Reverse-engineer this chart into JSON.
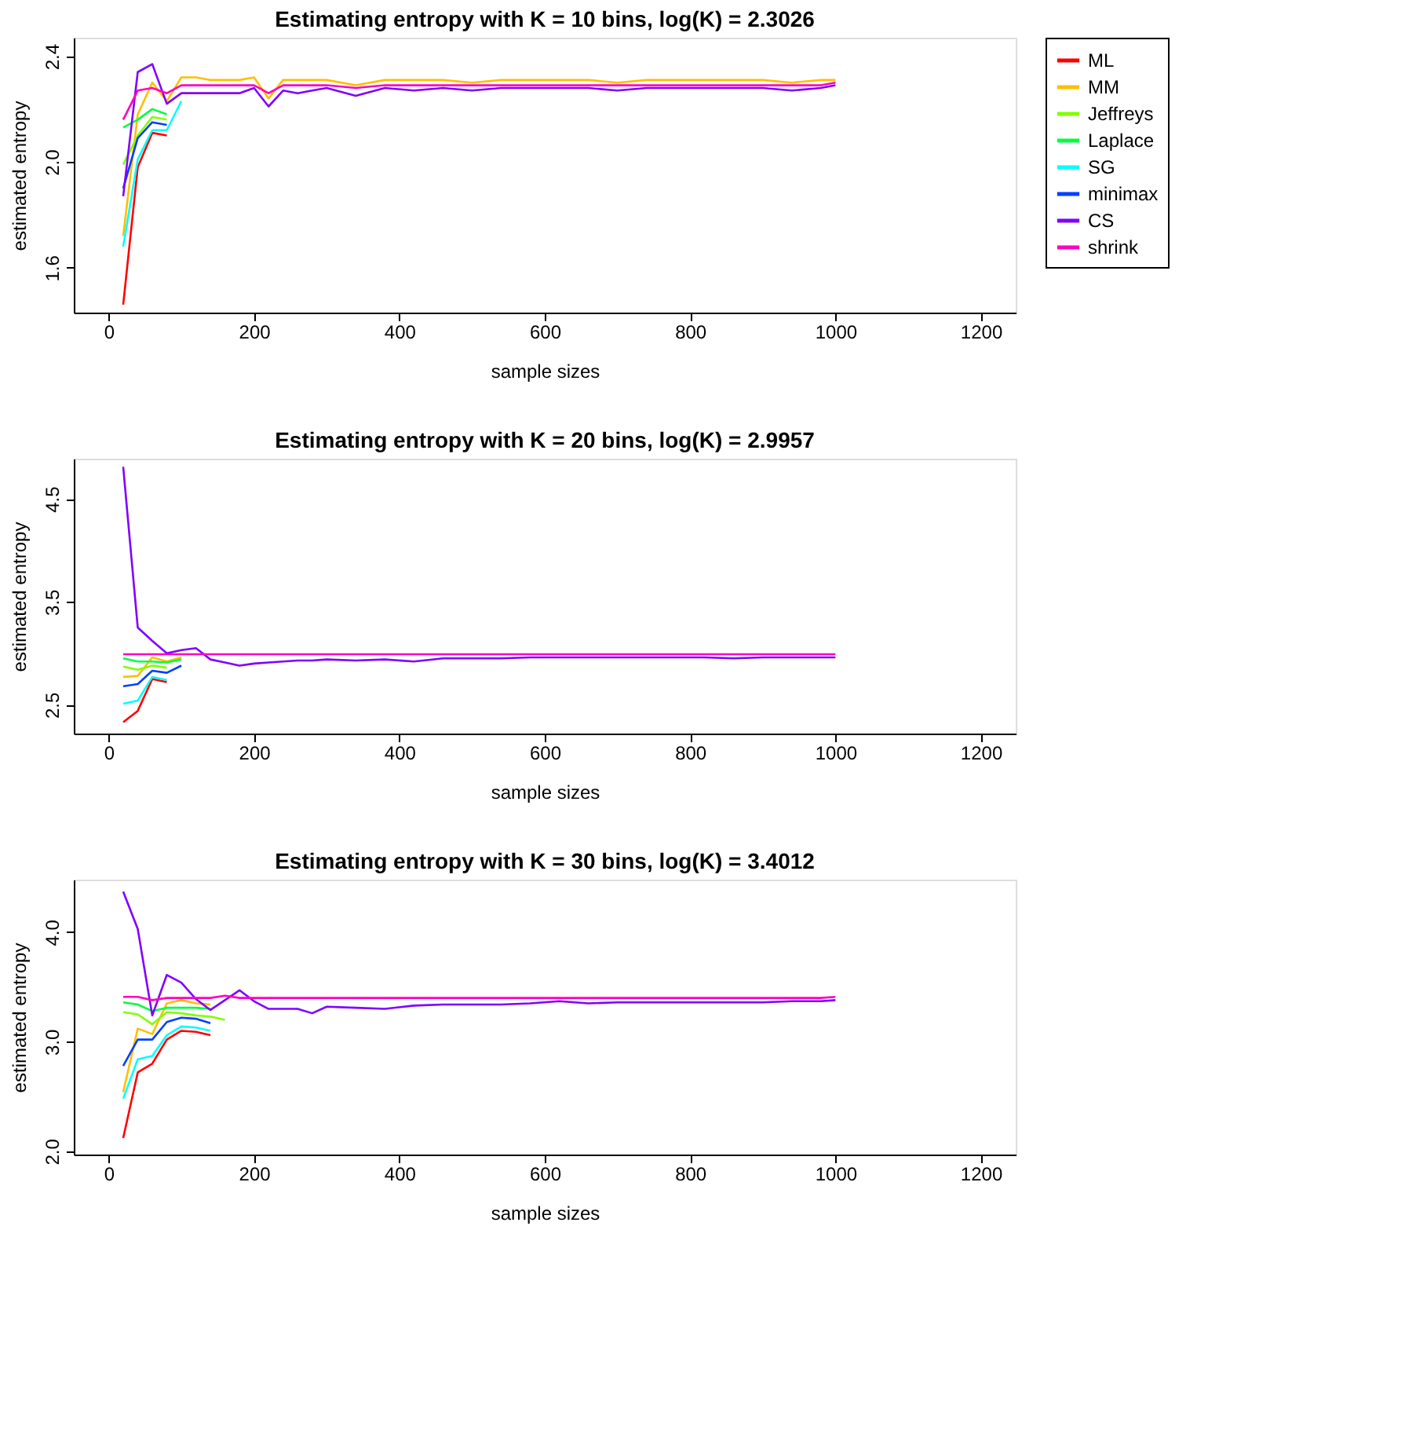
{
  "chart_data": [
    {
      "type": "line",
      "title": "Estimating entropy with K = 10 bins, log(K) = 2.3026",
      "xlabel": "sample sizes",
      "ylabel": "estimated entropy",
      "x": [
        20,
        40,
        60,
        80,
        100,
        120,
        140,
        160,
        180,
        200,
        220,
        240,
        260,
        280,
        300,
        340,
        380,
        420,
        460,
        500,
        540,
        580,
        620,
        660,
        700,
        740,
        780,
        820,
        860,
        900,
        940,
        980,
        1000
      ],
      "xlim": [
        -48,
        1248
      ],
      "xticks": [
        0,
        200,
        400,
        600,
        800,
        1000,
        1200
      ],
      "ylim": [
        1.43,
        2.47
      ],
      "yticks": [
        1.6,
        {
          "value": 2.0,
          "label": "2.0"
        },
        2.4
      ],
      "grid": false,
      "legend": "right",
      "line_style": "solid",
      "marker": "none",
      "series": [
        {
          "name": "ML",
          "color": "#ff0000",
          "values": [
            1.46,
            1.98,
            2.11,
            2.1,
            null,
            null,
            null,
            null,
            null,
            null,
            null,
            null,
            null,
            null,
            null,
            null,
            null,
            null,
            null,
            null,
            null,
            null,
            null,
            null,
            null,
            null,
            null,
            null,
            null,
            null,
            null,
            null,
            null
          ]
        },
        {
          "name": "MM",
          "color": "#ffbf00",
          "values": [
            1.72,
            2.18,
            2.3,
            2.23,
            2.32,
            2.32,
            2.31,
            2.31,
            2.31,
            2.32,
            2.24,
            2.31,
            2.31,
            2.31,
            2.31,
            2.29,
            2.31,
            2.31,
            2.31,
            2.3,
            2.31,
            2.31,
            2.31,
            2.31,
            2.3,
            2.31,
            2.31,
            2.31,
            2.31,
            2.31,
            2.3,
            2.31,
            2.31
          ]
        },
        {
          "name": "Jeffreys",
          "color": "#80ff00",
          "values": [
            1.99,
            2.1,
            2.17,
            2.16,
            null,
            null,
            null,
            null,
            null,
            null,
            null,
            null,
            null,
            null,
            null,
            null,
            null,
            null,
            null,
            null,
            null,
            null,
            null,
            null,
            null,
            null,
            null,
            null,
            null,
            null,
            null,
            null,
            null
          ]
        },
        {
          "name": "Laplace",
          "color": "#00ff40",
          "values": [
            2.13,
            2.16,
            2.2,
            2.18,
            null,
            null,
            null,
            null,
            null,
            null,
            null,
            null,
            null,
            null,
            null,
            null,
            null,
            null,
            null,
            null,
            null,
            null,
            null,
            null,
            null,
            null,
            null,
            null,
            null,
            null,
            null,
            null,
            null
          ]
        },
        {
          "name": "SG",
          "color": "#00ffff",
          "values": [
            1.68,
            2.01,
            2.12,
            2.12,
            2.23,
            null,
            null,
            null,
            null,
            null,
            null,
            null,
            null,
            null,
            null,
            null,
            null,
            null,
            null,
            null,
            null,
            null,
            null,
            null,
            null,
            null,
            null,
            null,
            null,
            null,
            null,
            null,
            null
          ]
        },
        {
          "name": "minimax",
          "color": "#0040ff",
          "values": [
            1.9,
            2.09,
            2.15,
            2.14,
            null,
            null,
            null,
            null,
            null,
            null,
            null,
            null,
            null,
            null,
            null,
            null,
            null,
            null,
            null,
            null,
            null,
            null,
            null,
            null,
            null,
            null,
            null,
            null,
            null,
            null,
            null,
            null,
            null
          ]
        },
        {
          "name": "CS",
          "color": "#8000ff",
          "values": [
            1.87,
            2.34,
            2.37,
            2.22,
            2.26,
            2.26,
            2.26,
            2.26,
            2.26,
            2.28,
            2.21,
            2.27,
            2.26,
            2.27,
            2.28,
            2.25,
            2.28,
            2.27,
            2.28,
            2.27,
            2.28,
            2.28,
            2.28,
            2.28,
            2.27,
            2.28,
            2.28,
            2.28,
            2.28,
            2.28,
            2.27,
            2.28,
            2.29
          ]
        },
        {
          "name": "shrink",
          "color": "#ff00bf",
          "values": [
            2.16,
            2.27,
            2.28,
            2.26,
            2.29,
            2.29,
            2.29,
            2.29,
            2.29,
            2.29,
            2.26,
            2.29,
            2.29,
            2.29,
            2.29,
            2.28,
            2.29,
            2.29,
            2.29,
            2.29,
            2.29,
            2.29,
            2.29,
            2.29,
            2.29,
            2.29,
            2.29,
            2.29,
            2.29,
            2.29,
            2.29,
            2.29,
            2.3
          ]
        }
      ]
    },
    {
      "type": "line",
      "title": "Estimating entropy with K = 20 bins, log(K) = 2.9957",
      "xlabel": "sample sizes",
      "ylabel": "estimated entropy",
      "x": [
        20,
        40,
        60,
        80,
        100,
        120,
        140,
        160,
        180,
        200,
        220,
        240,
        260,
        280,
        300,
        340,
        380,
        420,
        460,
        500,
        540,
        580,
        620,
        660,
        700,
        740,
        780,
        820,
        860,
        900,
        940,
        980,
        1000
      ],
      "xlim": [
        -48,
        1248
      ],
      "xticks": [
        0,
        200,
        400,
        600,
        800,
        1000,
        1200
      ],
      "ylim": [
        2.22,
        4.89
      ],
      "yticks": [
        2.5,
        3.5,
        4.5
      ],
      "grid": false,
      "legend": "right",
      "line_style": "solid",
      "marker": "none",
      "series": [
        {
          "name": "ML",
          "color": "#ff0000",
          "values": [
            2.33,
            2.44,
            2.75,
            2.72,
            null,
            null,
            null,
            null,
            null,
            null,
            null,
            null,
            null,
            null,
            null,
            null,
            null,
            null,
            null,
            null,
            null,
            null,
            null,
            null,
            null,
            null,
            null,
            null,
            null,
            null,
            null,
            null,
            null
          ]
        },
        {
          "name": "MM",
          "color": "#ffbf00",
          "values": [
            2.77,
            2.78,
            2.96,
            2.92,
            2.96,
            null,
            null,
            null,
            null,
            null,
            null,
            null,
            null,
            null,
            null,
            null,
            null,
            null,
            null,
            null,
            null,
            null,
            null,
            null,
            null,
            null,
            null,
            null,
            null,
            null,
            null,
            null,
            null
          ]
        },
        {
          "name": "Jeffreys",
          "color": "#80ff00",
          "values": [
            2.87,
            2.84,
            2.88,
            2.86,
            null,
            null,
            null,
            null,
            null,
            null,
            null,
            null,
            null,
            null,
            null,
            null,
            null,
            null,
            null,
            null,
            null,
            null,
            null,
            null,
            null,
            null,
            null,
            null,
            null,
            null,
            null,
            null,
            null
          ]
        },
        {
          "name": "Laplace",
          "color": "#00ff40",
          "values": [
            2.95,
            2.92,
            2.92,
            2.91,
            2.94,
            null,
            null,
            null,
            null,
            null,
            null,
            null,
            null,
            null,
            null,
            null,
            null,
            null,
            null,
            null,
            null,
            null,
            null,
            null,
            null,
            null,
            null,
            null,
            null,
            null,
            null,
            null,
            null
          ]
        },
        {
          "name": "SG",
          "color": "#00ffff",
          "values": [
            2.51,
            2.54,
            2.77,
            2.74,
            null,
            null,
            null,
            null,
            null,
            null,
            null,
            null,
            null,
            null,
            null,
            null,
            null,
            null,
            null,
            null,
            null,
            null,
            null,
            null,
            null,
            null,
            null,
            null,
            null,
            null,
            null,
            null,
            null
          ]
        },
        {
          "name": "minimax",
          "color": "#0040ff",
          "values": [
            2.68,
            2.7,
            2.83,
            2.81,
            2.88,
            null,
            null,
            null,
            null,
            null,
            null,
            null,
            null,
            null,
            null,
            null,
            null,
            null,
            null,
            null,
            null,
            null,
            null,
            null,
            null,
            null,
            null,
            null,
            null,
            null,
            null,
            null,
            null
          ]
        },
        {
          "name": "CS",
          "color": "#8000ff",
          "values": [
            4.81,
            3.25,
            3.12,
            3.0,
            3.03,
            3.05,
            2.94,
            2.91,
            2.88,
            2.9,
            2.91,
            2.92,
            2.93,
            2.93,
            2.94,
            2.93,
            2.94,
            2.92,
            2.95,
            2.95,
            2.95,
            2.96,
            2.96,
            2.96,
            2.96,
            2.96,
            2.96,
            2.96,
            2.95,
            2.96,
            2.96,
            2.96,
            2.96
          ]
        },
        {
          "name": "shrink",
          "color": "#ff00bf",
          "values": [
            2.99,
            2.99,
            2.99,
            2.99,
            2.99,
            2.99,
            2.99,
            2.99,
            2.99,
            2.99,
            2.99,
            2.99,
            2.99,
            2.99,
            2.99,
            2.99,
            2.99,
            2.99,
            2.99,
            2.99,
            2.99,
            2.99,
            2.99,
            2.99,
            2.99,
            2.99,
            2.99,
            2.99,
            2.99,
            2.99,
            2.99,
            2.99,
            2.99
          ]
        }
      ]
    },
    {
      "type": "line",
      "title": "Estimating entropy with K = 30 bins, log(K) = 3.4012",
      "xlabel": "sample sizes",
      "ylabel": "estimated entropy",
      "x": [
        20,
        40,
        60,
        80,
        100,
        120,
        140,
        160,
        180,
        200,
        220,
        240,
        260,
        280,
        300,
        340,
        380,
        420,
        460,
        500,
        540,
        580,
        620,
        660,
        700,
        740,
        780,
        820,
        860,
        900,
        940,
        980,
        1000
      ],
      "xlim": [
        -48,
        1248
      ],
      "xticks": [
        0,
        200,
        400,
        600,
        800,
        1000,
        1200
      ],
      "ylim": [
        1.97,
        4.48
      ],
      "yticks": [
        {
          "value": 2.0,
          "label": "2.0"
        },
        {
          "value": 3.0,
          "label": "3.0"
        },
        {
          "value": 4.0,
          "label": "4.0"
        }
      ],
      "grid": false,
      "legend": "right",
      "line_style": "solid",
      "marker": "none",
      "series": [
        {
          "name": "ML",
          "color": "#ff0000",
          "values": [
            2.12,
            2.72,
            2.8,
            3.02,
            3.1,
            3.09,
            3.06,
            null,
            null,
            null,
            null,
            null,
            null,
            null,
            null,
            null,
            null,
            null,
            null,
            null,
            null,
            null,
            null,
            null,
            null,
            null,
            null,
            null,
            null,
            null,
            null,
            null,
            null
          ]
        },
        {
          "name": "MM",
          "color": "#ffbf00",
          "values": [
            2.54,
            3.12,
            3.07,
            3.35,
            3.38,
            3.35,
            3.34,
            null,
            null,
            null,
            null,
            null,
            null,
            null,
            null,
            null,
            null,
            null,
            null,
            null,
            null,
            null,
            null,
            null,
            null,
            null,
            null,
            null,
            null,
            null,
            null,
            null,
            null
          ]
        },
        {
          "name": "Jeffreys",
          "color": "#80ff00",
          "values": [
            3.27,
            3.25,
            3.16,
            3.27,
            3.26,
            3.24,
            3.23,
            3.2,
            null,
            null,
            null,
            null,
            null,
            null,
            null,
            null,
            null,
            null,
            null,
            null,
            null,
            null,
            null,
            null,
            null,
            null,
            null,
            null,
            null,
            null,
            null,
            null,
            null
          ]
        },
        {
          "name": "Laplace",
          "color": "#00ff40",
          "values": [
            3.36,
            3.34,
            3.28,
            3.31,
            3.31,
            3.31,
            3.3,
            null,
            null,
            null,
            null,
            null,
            null,
            null,
            null,
            null,
            null,
            null,
            null,
            null,
            null,
            null,
            null,
            null,
            null,
            null,
            null,
            null,
            null,
            null,
            null,
            null,
            null
          ]
        },
        {
          "name": "SG",
          "color": "#00ffff",
          "values": [
            2.48,
            2.84,
            2.87,
            3.06,
            3.14,
            3.13,
            3.1,
            null,
            null,
            null,
            null,
            null,
            null,
            null,
            null,
            null,
            null,
            null,
            null,
            null,
            null,
            null,
            null,
            null,
            null,
            null,
            null,
            null,
            null,
            null,
            null,
            null,
            null
          ]
        },
        {
          "name": "minimax",
          "color": "#0040ff",
          "values": [
            2.78,
            3.02,
            3.02,
            3.18,
            3.22,
            3.21,
            3.17,
            null,
            null,
            null,
            null,
            null,
            null,
            null,
            null,
            null,
            null,
            null,
            null,
            null,
            null,
            null,
            null,
            null,
            null,
            null,
            null,
            null,
            null,
            null,
            null,
            null,
            null
          ]
        },
        {
          "name": "CS",
          "color": "#8000ff",
          "values": [
            4.37,
            4.03,
            3.24,
            3.61,
            3.54,
            3.39,
            3.29,
            3.38,
            3.47,
            3.37,
            3.3,
            3.3,
            3.3,
            3.26,
            3.32,
            3.31,
            3.3,
            3.33,
            3.34,
            3.34,
            3.34,
            3.35,
            3.37,
            3.35,
            3.36,
            3.36,
            3.36,
            3.36,
            3.36,
            3.36,
            3.37,
            3.37,
            3.38
          ]
        },
        {
          "name": "shrink",
          "color": "#ff00bf",
          "values": [
            3.41,
            3.41,
            3.38,
            3.4,
            3.4,
            3.4,
            3.4,
            3.42,
            3.4,
            3.4,
            3.4,
            3.4,
            3.4,
            3.4,
            3.4,
            3.4,
            3.4,
            3.4,
            3.4,
            3.4,
            3.4,
            3.4,
            3.4,
            3.4,
            3.4,
            3.4,
            3.4,
            3.4,
            3.4,
            3.4,
            3.4,
            3.4,
            3.41
          ]
        }
      ]
    }
  ]
}
